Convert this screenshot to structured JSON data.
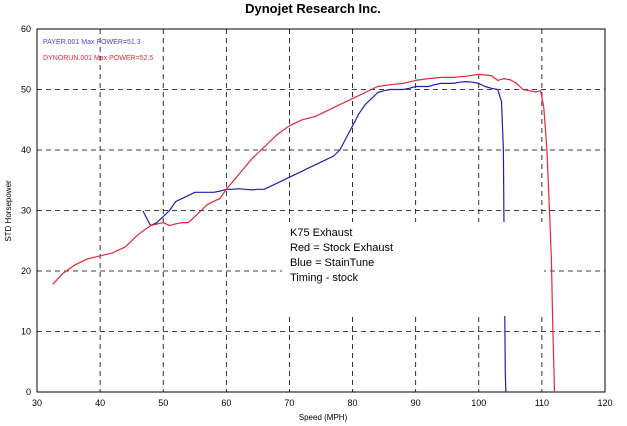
{
  "chart_data": {
    "type": "line",
    "title": "Dynojet Research Inc.",
    "xlabel": "Speed (MPH)",
    "ylabel": "STD Horsepower",
    "xlim": [
      30,
      120
    ],
    "ylim": [
      0,
      60
    ],
    "xticks": [
      "30",
      "40",
      "50",
      "60",
      "70",
      "80",
      "90",
      "100",
      "110",
      "120"
    ],
    "yticks": [
      "0",
      "10",
      "20",
      "30",
      "40",
      "50",
      "60"
    ],
    "grid": true,
    "legend_position": "top-left",
    "series": [
      {
        "name": "PAYER.001  Max POWER=51.3",
        "color": "#1f1fa8",
        "x": [
          46.8,
          48,
          49,
          50,
          51,
          52,
          53,
          54,
          55,
          56,
          57,
          58,
          59,
          60,
          61,
          62,
          63,
          64,
          65,
          66,
          67,
          68,
          69,
          70,
          71,
          72,
          73,
          74,
          75,
          76,
          77,
          78,
          79,
          80,
          81,
          82,
          83,
          84,
          85,
          86,
          87,
          88,
          89,
          90,
          91,
          92,
          93,
          94,
          95,
          96,
          97,
          98,
          99,
          100,
          101,
          102,
          103,
          103.6,
          103.9,
          104.0,
          104.1,
          104.2,
          104.3
        ],
        "y": [
          29.9,
          27.5,
          28,
          29,
          30,
          31.5,
          32,
          32.5,
          33,
          33,
          33,
          33,
          33.2,
          33.5,
          33.5,
          33.6,
          33.5,
          33.4,
          33.5,
          33.5,
          34,
          34.5,
          35,
          35.5,
          36,
          36.5,
          37,
          37.5,
          38,
          38.5,
          39,
          40,
          42,
          44,
          46,
          47.5,
          48.5,
          49.5,
          49.8,
          50,
          50,
          50,
          50.2,
          50.5,
          50.5,
          50.5,
          50.8,
          51,
          51,
          51,
          51.2,
          51.3,
          51.2,
          51,
          50.5,
          50.2,
          50,
          48,
          40,
          27,
          14,
          3,
          0
        ]
      },
      {
        "name": "DYNORUN.001  Max POWER=52.5",
        "color": "#e0283c",
        "x": [
          32.5,
          34,
          36,
          38,
          40,
          42,
          44,
          46,
          48,
          50,
          51,
          52,
          53,
          54,
          55,
          56,
          57,
          58,
          59,
          60,
          62,
          64,
          66,
          68,
          70,
          72,
          74,
          76,
          78,
          80,
          82,
          84,
          86,
          88,
          90,
          92,
          94,
          96,
          98,
          100,
          101,
          102,
          103,
          104,
          105,
          106,
          107,
          108,
          109,
          109.8,
          110.3,
          110.8,
          111.2,
          111.5,
          111.7,
          111.9,
          112.0
        ],
        "y": [
          17.8,
          19.5,
          21,
          22,
          22.5,
          23,
          24,
          26,
          27.5,
          28,
          27.5,
          27.8,
          28,
          28,
          29,
          30,
          31,
          31.5,
          32,
          33.5,
          36,
          38.5,
          40.5,
          42.5,
          44,
          45,
          45.5,
          46.5,
          47.5,
          48.5,
          49.5,
          50.5,
          50.8,
          51,
          51.5,
          51.8,
          52,
          52,
          52.2,
          52.5,
          52.4,
          52.3,
          51.5,
          51.8,
          51.6,
          51,
          50,
          49.8,
          49.6,
          49.8,
          47,
          40,
          30,
          22,
          12,
          4,
          0
        ]
      }
    ],
    "annotations": [
      "K75 Exhaust",
      "Red = Stock Exhaust",
      "Blue = StainTune",
      "Timing - stock"
    ]
  }
}
